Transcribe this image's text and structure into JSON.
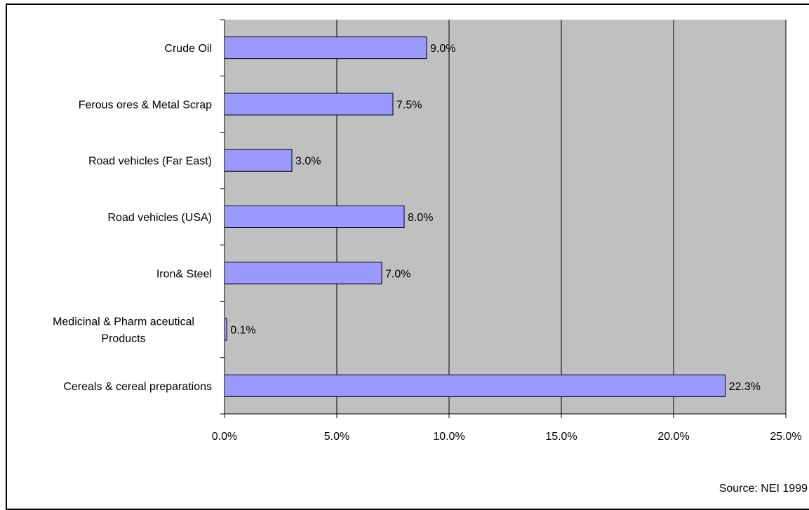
{
  "chart_data": {
    "type": "bar",
    "orientation": "horizontal",
    "categories": [
      "Crude Oil",
      "Ferous ores & Metal Scrap",
      "Road vehicles (Far East)",
      "Road vehicles (USA)",
      "Iron& Steel",
      "Medicinal & Pharmaceutical Products",
      "Cereals & cereal preparations"
    ],
    "category_lines": [
      [
        "Crude Oil"
      ],
      [
        "Ferous ores & Metal Scrap"
      ],
      [
        "Road vehicles (Far East)"
      ],
      [
        "Road vehicles (USA)"
      ],
      [
        "Iron& Steel"
      ],
      [
        "Medicinal & Pharm aceutical",
        "Products"
      ],
      [
        "Cereals & cereal preparations"
      ]
    ],
    "values": [
      9.0,
      7.5,
      3.0,
      8.0,
      7.0,
      0.1,
      22.3
    ],
    "data_labels": [
      "9.0%",
      "7.5%",
      "3.0%",
      "8.0%",
      "7.0%",
      "0.1%",
      "22.3%"
    ],
    "xlim": [
      0,
      25
    ],
    "x_ticks": [
      0,
      5,
      10,
      15,
      20,
      25
    ],
    "x_tick_labels": [
      "0.0%",
      "5.0%",
      "10.0%",
      "15.0%",
      "20.0%",
      "25.0%"
    ],
    "grid": "vertical",
    "legend": "none",
    "colors": {
      "bar": "#9999ff",
      "plot_bg": "#c0c0c0",
      "grid": "#000000"
    }
  },
  "footer": {
    "source": "Source: NEI 1999"
  }
}
